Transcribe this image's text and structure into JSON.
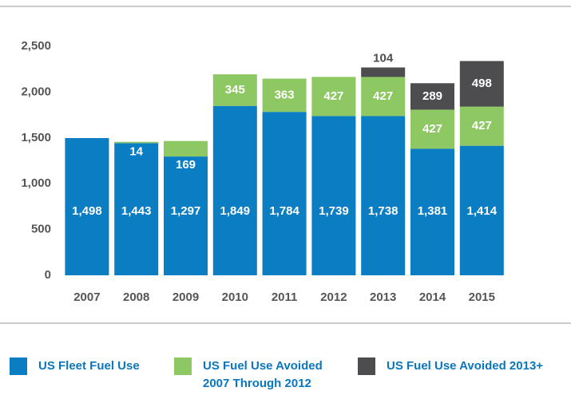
{
  "chart_data": {
    "type": "stacked_bar",
    "categories": [
      "2007",
      "2008",
      "2009",
      "2010",
      "2011",
      "2012",
      "2013",
      "2014",
      "2015"
    ],
    "series": [
      {
        "name": "US Fleet Fuel Use",
        "color": "#0b7dc3",
        "values": [
          1498,
          1443,
          1297,
          1849,
          1784,
          1739,
          1738,
          1381,
          1414
        ],
        "value_labels": [
          "1,498",
          "1,443",
          "1,297",
          "1,849",
          "1,784",
          "1,739",
          "1,738",
          "1,381",
          "1,414"
        ]
      },
      {
        "name": "US Fuel Use Avoided 2007 Through 2012",
        "color": "#8dc863",
        "values": [
          null,
          14,
          169,
          345,
          363,
          427,
          427,
          427,
          427
        ]
      },
      {
        "name": "US Fuel Use Avoided 2013+",
        "color": "#4d4d4f",
        "values": [
          null,
          null,
          null,
          null,
          null,
          null,
          104,
          289,
          498
        ]
      }
    ],
    "ylim": [
      0,
      2500
    ],
    "yticks": [
      0,
      500,
      {
        "value": 1000,
        "label": "1,000"
      },
      {
        "value": 1500,
        "label": "1,500"
      },
      {
        "value": 2000,
        "label": "2,000"
      },
      {
        "value": 2500,
        "label": "2,500"
      }
    ],
    "grid": false
  }
}
